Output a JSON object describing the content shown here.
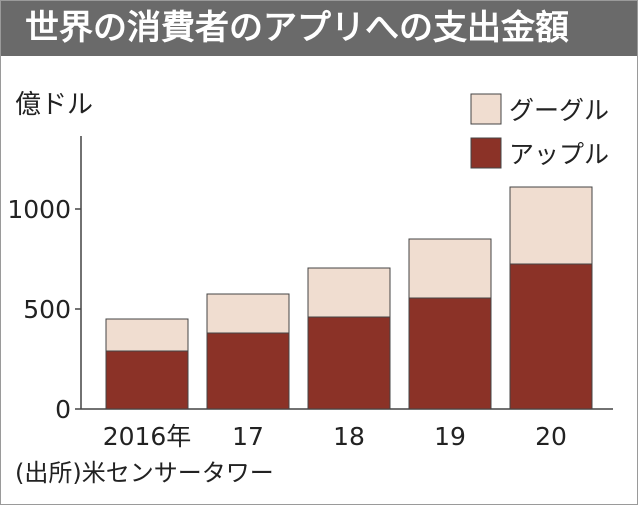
{
  "title": "世界の消費者のアプリへの支出金額",
  "unit_label": "億ドル",
  "source": "(出所)米センサータワー",
  "colors": {
    "title_bg": "#6a6a6a",
    "google": "#f0ddd0",
    "apple": "#8b3227",
    "stroke": "#444444"
  },
  "chart_data": {
    "type": "bar",
    "stacked": true,
    "categories": [
      "2016年",
      "17",
      "18",
      "19",
      "20"
    ],
    "series": [
      {
        "name": "アップル",
        "values": [
          290,
          380,
          460,
          555,
          725
        ],
        "color": "#8b3227"
      },
      {
        "name": "グーグル",
        "values": [
          160,
          195,
          245,
          295,
          385
        ],
        "color": "#f0ddd0"
      }
    ],
    "legend_order": [
      "グーグル",
      "アップル"
    ],
    "legend_position": "top-right",
    "y_ticks": [
      0,
      500,
      1000
    ],
    "ylim": [
      0,
      1350
    ],
    "ylabel": "億ドル",
    "grid": false
  }
}
